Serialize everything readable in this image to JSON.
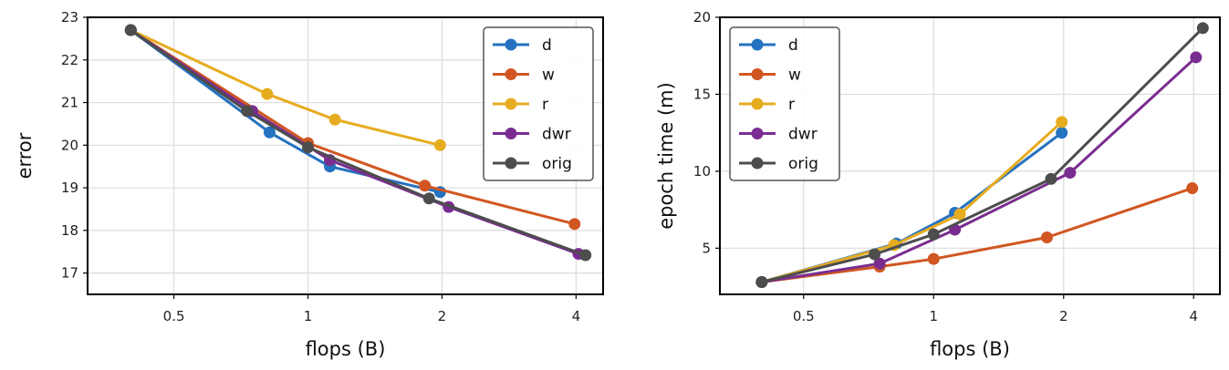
{
  "chart_data": [
    {
      "type": "line",
      "xscale": "log",
      "xlabel": "flops (B)",
      "ylabel": "error",
      "xlim": [
        0.32,
        4.6
      ],
      "ylim": [
        16.5,
        23.0
      ],
      "xticks": [
        0.5,
        1,
        2,
        4
      ],
      "xtick_labels": [
        "0.5",
        "1",
        "2",
        "4"
      ],
      "yticks": [
        17,
        18,
        19,
        20,
        21,
        22,
        23
      ],
      "ytick_labels": [
        "17",
        "18",
        "19",
        "20",
        "21",
        "22",
        "23"
      ],
      "grid": true,
      "legend_position": "top-right",
      "series": [
        {
          "name": "d",
          "color": "#2572c0",
          "x": [
            0.4,
            0.82,
            1.12,
            1.98
          ],
          "y": [
            22.7,
            20.3,
            19.5,
            18.9
          ]
        },
        {
          "name": "w",
          "color": "#d15621",
          "x": [
            0.4,
            1.0,
            1.83,
            3.97
          ],
          "y": [
            22.7,
            20.05,
            19.05,
            18.15
          ]
        },
        {
          "name": "r",
          "color": "#e6ac20",
          "x": [
            0.4,
            0.81,
            1.15,
            1.98
          ],
          "y": [
            22.7,
            21.2,
            20.6,
            20.0
          ]
        },
        {
          "name": "dwr",
          "color": "#7a2d90",
          "x": [
            0.4,
            0.75,
            1.12,
            2.07,
            4.05
          ],
          "y": [
            22.7,
            20.8,
            19.65,
            18.55,
            17.45
          ]
        },
        {
          "name": "orig",
          "color": "#4d4d4d",
          "x": [
            0.4,
            0.73,
            1.0,
            1.87,
            4.2
          ],
          "y": [
            22.7,
            20.8,
            19.95,
            18.75,
            17.42
          ]
        }
      ]
    },
    {
      "type": "line",
      "xscale": "log",
      "xlabel": "flops (B)",
      "ylabel": "epoch time (m)",
      "xlim": [
        0.32,
        4.6
      ],
      "ylim": [
        2.0,
        20.0
      ],
      "xticks": [
        0.5,
        1,
        2,
        4
      ],
      "xtick_labels": [
        "0.5",
        "1",
        "2",
        "4"
      ],
      "yticks": [
        5,
        10,
        15,
        20
      ],
      "ytick_labels": [
        "5",
        "10",
        "15",
        "20"
      ],
      "grid": true,
      "legend_position": "top-left",
      "series": [
        {
          "name": "d",
          "color": "#2572c0",
          "x": [
            0.4,
            0.82,
            1.12,
            1.98
          ],
          "y": [
            2.8,
            5.3,
            7.3,
            12.5
          ]
        },
        {
          "name": "w",
          "color": "#d15621",
          "x": [
            0.4,
            0.75,
            1.0,
            1.83,
            3.97
          ],
          "y": [
            2.8,
            3.8,
            4.3,
            5.7,
            8.9
          ]
        },
        {
          "name": "r",
          "color": "#e6ac20",
          "x": [
            0.4,
            0.81,
            1.15,
            1.98
          ],
          "y": [
            2.8,
            5.2,
            7.2,
            13.2
          ]
        },
        {
          "name": "dwr",
          "color": "#7a2d90",
          "x": [
            0.4,
            0.75,
            1.12,
            2.07,
            4.05
          ],
          "y": [
            2.8,
            4.0,
            6.2,
            9.9,
            17.4
          ]
        },
        {
          "name": "orig",
          "color": "#4d4d4d",
          "x": [
            0.4,
            0.73,
            1.0,
            1.87,
            4.2
          ],
          "y": [
            2.8,
            4.6,
            5.9,
            9.5,
            19.3
          ]
        }
      ]
    }
  ]
}
